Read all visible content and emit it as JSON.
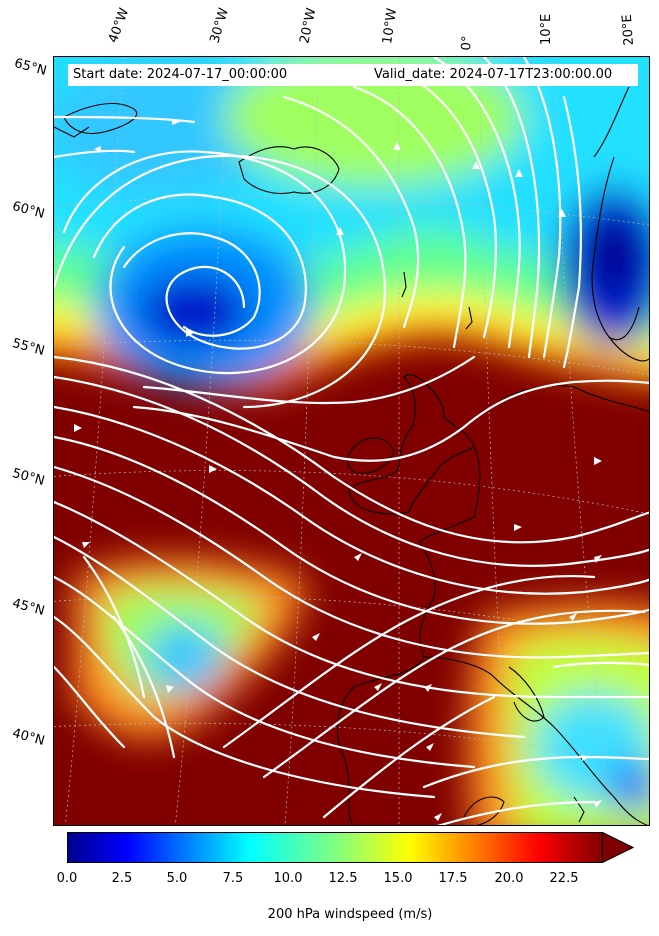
{
  "header": {
    "start_date": "Start date: 2024-07-17_00:00:00",
    "valid_date": "Valid_date: 2024-07-17T23:00:00.00"
  },
  "lon_labels": [
    "40°W",
    "30°W",
    "20°W",
    "10°W",
    "0°",
    "10°E",
    "20°E"
  ],
  "lat_labels": [
    "65°N",
    "60°N",
    "55°N",
    "50°N",
    "45°N",
    "40°N"
  ],
  "colorbar": {
    "ticks": [
      "0.0",
      "2.5",
      "5.0",
      "7.5",
      "10.0",
      "12.5",
      "15.0",
      "17.5",
      "20.0",
      "22.5"
    ],
    "label": "200 hPa windspeed (m/s)",
    "range": [
      0,
      25
    ],
    "extend": "max",
    "colormap": "jet"
  },
  "colors": {
    "slow": "#00008b",
    "mid": "#00ffff",
    "fast": "#800000",
    "streamline": "#ffffff",
    "coast": "#000000"
  },
  "map": {
    "field": "200 hPa windspeed",
    "features": [
      "jet stream core over British Isles",
      "low-pressure vortex south of Iceland",
      "streamlines"
    ]
  }
}
